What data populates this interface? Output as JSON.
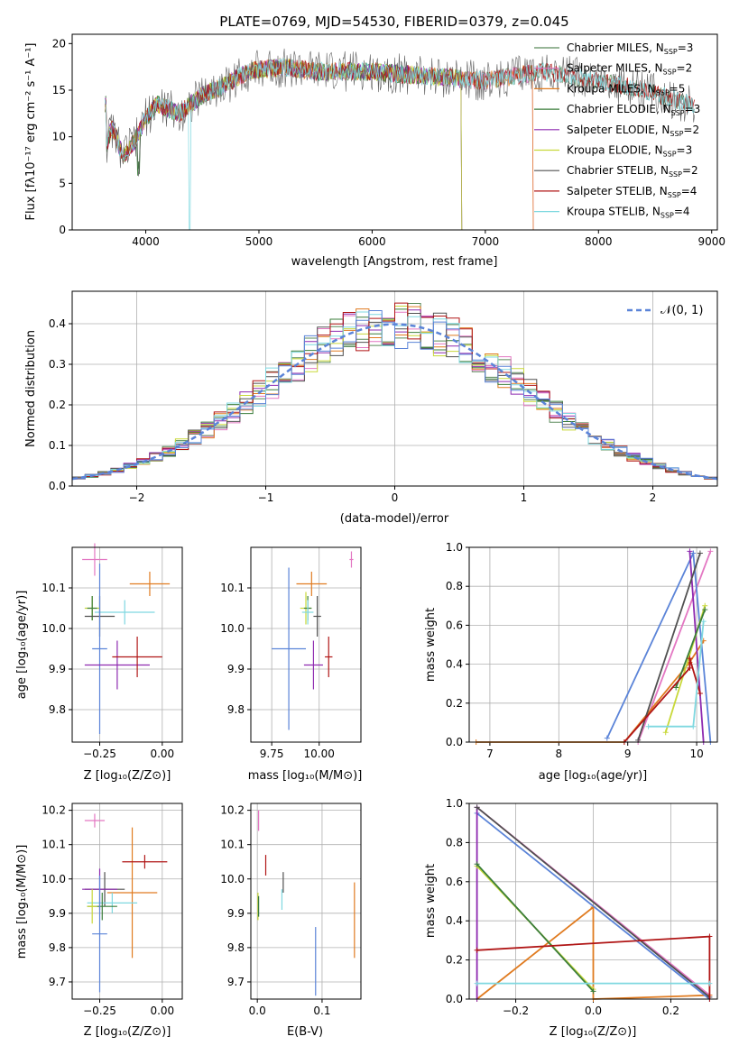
{
  "colors": {
    "Chabrier MILES": "#5a8a5a",
    "Salpeter MILES": "#e377c2",
    "Kroupa MILES": "#e07b20",
    "Chabrier ELODIE": "#3a7d3a",
    "Salpeter ELODIE": "#8e2ab0",
    "Kroupa ELODIE": "#c8d83a",
    "Chabrier STELIB": "#505050",
    "Salpeter STELIB": "#b01515",
    "Kroupa STELIB": "#7fd8e0",
    "Blue": "#5b84d8"
  },
  "chart_data": [
    {
      "id": "spectrum",
      "type": "line",
      "title": "PLATE=0769, MJD=54530, FIBERID=0379, z=0.045",
      "xlabel": "wavelength [Angstrom, rest frame]",
      "ylabel": "Flux [fλ10⁻¹⁷ erg cm⁻² s⁻¹ A⁻¹]",
      "xlim": [
        3350,
        9050
      ],
      "ylim": [
        0,
        21
      ],
      "xticks": [
        4000,
        5000,
        6000,
        7000,
        8000,
        9000
      ],
      "yticks": [
        0,
        5,
        10,
        15,
        20
      ],
      "legend_position": "top-right",
      "continuum": [
        [
          3650,
          9
        ],
        [
          3700,
          11
        ],
        [
          3800,
          8
        ],
        [
          3900,
          9.5
        ],
        [
          4000,
          12
        ],
        [
          4100,
          13.5
        ],
        [
          4200,
          13
        ],
        [
          4300,
          12.5
        ],
        [
          4500,
          14.5
        ],
        [
          4700,
          15.5
        ],
        [
          4900,
          17
        ],
        [
          5200,
          17.5
        ],
        [
          5500,
          17
        ],
        [
          6000,
          17
        ],
        [
          6500,
          16.5
        ],
        [
          7000,
          16
        ],
        [
          7500,
          17
        ],
        [
          8000,
          16
        ],
        [
          8400,
          15
        ],
        [
          8800,
          13.5
        ]
      ],
      "series": [
        {
          "name": "Chabrier MILES, Nₛₛₚ=3",
          "name_main": "Chabrier MILES, N",
          "name_sub": "SSP",
          "name_tail": "=3",
          "color_key": "Chabrier MILES",
          "end": 8850
        },
        {
          "name": "Salpeter MILES, Nₛₛₚ=2",
          "name_main": "Salpeter MILES, N",
          "name_sub": "SSP",
          "name_tail": "=2",
          "color_key": "Salpeter MILES",
          "end": 7430
        },
        {
          "name": "Kroupa MILES, Nₛₛₚ=5",
          "name_main": "Kroupa MILES, N",
          "name_sub": "SSP",
          "name_tail": "=5",
          "color_key": "Kroupa MILES",
          "end": 7430
        },
        {
          "name": "Chabrier ELODIE, Nₛₛₚ=3",
          "name_main": "Chabrier ELODIE, N",
          "name_sub": "SSP",
          "name_tail": "=3",
          "color_key": "Chabrier ELODIE",
          "end": 6800
        },
        {
          "name": "Salpeter ELODIE, Nₛₛₚ=2",
          "name_main": "Salpeter ELODIE, N",
          "name_sub": "SSP",
          "name_tail": "=2",
          "color_key": "Salpeter ELODIE",
          "end": 6800
        },
        {
          "name": "Kroupa ELODIE, Nₛₛₚ=3",
          "name_main": "Kroupa ELODIE, N",
          "name_sub": "SSP",
          "name_tail": "=3",
          "color_key": "Kroupa ELODIE",
          "end": 6800
        },
        {
          "name": "Chabrier STELIB, Nₛₛₚ=2",
          "name_main": "Chabrier STELIB, N",
          "name_sub": "SSP",
          "name_tail": "=2",
          "color_key": "Chabrier STELIB",
          "end": 8850
        },
        {
          "name": "Salpeter STELIB, Nₛₛₚ=4",
          "name_main": "Salpeter STELIB, N",
          "name_sub": "SSP",
          "name_tail": "=4",
          "color_key": "Salpeter STELIB",
          "end": 8850
        },
        {
          "name": "Kroupa STELIB, Nₛₛₚ=4",
          "name_main": "Kroupa STELIB, N",
          "name_sub": "SSP",
          "name_tail": "=4",
          "color_key": "Kroupa STELIB",
          "end": 8850
        }
      ]
    },
    {
      "id": "residuals",
      "type": "line",
      "xlabel": "(data-model)/error",
      "ylabel": "Normed distribution",
      "xlim": [
        -2.5,
        2.5
      ],
      "ylim": [
        0,
        0.48
      ],
      "xticks": [
        -2,
        -1,
        0,
        1,
        2
      ],
      "yticks": [
        0.0,
        0.1,
        0.2,
        0.3,
        0.4
      ],
      "grid": true,
      "legend": "𝒩(0, 1)",
      "legend_position": "top-right",
      "bin_width": 0.1,
      "series_colors": [
        "Chabrier MILES",
        "Salpeter MILES",
        "Kroupa MILES",
        "Chabrier ELODIE",
        "Salpeter ELODIE",
        "Kroupa ELODIE",
        "Chabrier STELIB",
        "Salpeter STELIB",
        "Kroupa STELIB",
        "Blue"
      ]
    },
    {
      "id": "age_vs_Z",
      "type": "scatter",
      "xlabel": "Z [log₁₀(Z/Z⊙)]",
      "ylabel": "age  [log₁₀(age/yr)]",
      "xlim": [
        -0.36,
        0.08
      ],
      "ylim": [
        9.72,
        10.2
      ],
      "xticks": [
        -0.25,
        0.0
      ],
      "yticks": [
        9.8,
        9.9,
        10.0,
        10.1
      ],
      "grid": true,
      "points": [
        {
          "x": -0.27,
          "y": 10.17,
          "xerr": 0.05,
          "yerr": 0.04,
          "color_key": "Salpeter MILES"
        },
        {
          "x": -0.05,
          "y": 10.11,
          "xerr": 0.08,
          "yerr": 0.03,
          "color_key": "Kroupa MILES"
        },
        {
          "x": -0.28,
          "y": 10.05,
          "xerr": 0.03,
          "yerr": 0.03,
          "color_key": "Kroupa ELODIE"
        },
        {
          "x": -0.28,
          "y": 10.05,
          "xerr": 0.02,
          "yerr": 0.03,
          "color_key": "Chabrier ELODIE"
        },
        {
          "x": -0.15,
          "y": 10.04,
          "xerr": 0.12,
          "yerr": 0.03,
          "color_key": "Kroupa STELIB"
        },
        {
          "x": -0.25,
          "y": 10.03,
          "xerr": 0.06,
          "yerr": 0.05,
          "color_key": "Chabrier STELIB"
        },
        {
          "x": -0.25,
          "y": 9.95,
          "xerr": 0.03,
          "yerr": 0.21,
          "color_key": "Blue"
        },
        {
          "x": -0.18,
          "y": 9.91,
          "xerr": 0.13,
          "yerr": 0.06,
          "color_key": "Salpeter ELODIE"
        },
        {
          "x": -0.1,
          "y": 9.93,
          "xerr": 0.1,
          "yerr": 0.05,
          "color_key": "Salpeter STELIB"
        }
      ]
    },
    {
      "id": "age_vs_mass",
      "type": "scatter",
      "xlabel": "mass [log₁₀(M/M⊙)]",
      "xlim": [
        9.64,
        10.22
      ],
      "ylim": [
        9.72,
        10.2
      ],
      "xticks": [
        9.75,
        10.0
      ],
      "yticks": [
        9.8,
        9.9,
        10.0,
        10.1
      ],
      "grid": true,
      "points": [
        {
          "x": 10.17,
          "y": 10.17,
          "xerr": 0.01,
          "yerr": 0.02,
          "color_key": "Salpeter MILES"
        },
        {
          "x": 9.96,
          "y": 10.11,
          "xerr": 0.08,
          "yerr": 0.03,
          "color_key": "Kroupa MILES"
        },
        {
          "x": 9.93,
          "y": 10.05,
          "xerr": 0.03,
          "yerr": 0.04,
          "color_key": "Kroupa ELODIE"
        },
        {
          "x": 9.94,
          "y": 10.05,
          "xerr": 0.02,
          "yerr": 0.03,
          "color_key": "Chabrier ELODIE"
        },
        {
          "x": 9.94,
          "y": 10.04,
          "xerr": 0.03,
          "yerr": 0.03,
          "color_key": "Kroupa STELIB"
        },
        {
          "x": 9.99,
          "y": 10.03,
          "xerr": 0.02,
          "yerr": 0.05,
          "color_key": "Chabrier STELIB"
        },
        {
          "x": 9.84,
          "y": 9.95,
          "xerr": 0.09,
          "yerr": 0.2,
          "color_key": "Blue"
        },
        {
          "x": 9.97,
          "y": 9.91,
          "xerr": 0.05,
          "yerr": 0.06,
          "color_key": "Salpeter ELODIE"
        },
        {
          "x": 10.05,
          "y": 9.93,
          "xerr": 0.02,
          "yerr": 0.05,
          "color_key": "Salpeter STELIB"
        }
      ]
    },
    {
      "id": "mass_weight_vs_age",
      "type": "line",
      "xlabel": "age  [log₁₀(age/yr)]",
      "ylabel": "mass weight",
      "xlim": [
        6.7,
        10.3
      ],
      "ylim": [
        0,
        1.0
      ],
      "xticks": [
        7,
        8,
        9,
        10
      ],
      "yticks": [
        0.0,
        0.2,
        0.4,
        0.6,
        0.8,
        1.0
      ],
      "grid": true,
      "series": [
        {
          "color_key": "Salpeter MILES",
          "points": [
            [
              9.15,
              0.0
            ],
            [
              10.2,
              0.98
            ]
          ]
        },
        {
          "color_key": "Kroupa MILES",
          "points": [
            [
              6.8,
              0.0
            ],
            [
              8.95,
              0.0
            ],
            [
              9.9,
              0.41
            ],
            [
              10.1,
              0.52
            ]
          ]
        },
        {
          "color_key": "Blue",
          "points": [
            [
              8.7,
              0.02
            ],
            [
              9.95,
              0.97
            ],
            [
              10.2,
              0.0
            ]
          ]
        },
        {
          "color_key": "Salpeter ELODIE",
          "points": [
            [
              9.9,
              0.98
            ],
            [
              10.1,
              0.0
            ]
          ]
        },
        {
          "color_key": "Kroupa ELODIE",
          "points": [
            [
              9.55,
              0.05
            ],
            [
              10.12,
              0.7
            ]
          ]
        },
        {
          "color_key": "Chabrier ELODIE",
          "points": [
            [
              9.7,
              0.28
            ],
            [
              10.12,
              0.68
            ]
          ]
        },
        {
          "color_key": "Chabrier STELIB",
          "points": [
            [
              9.15,
              0.01
            ],
            [
              10.05,
              0.97
            ]
          ]
        },
        {
          "color_key": "Salpeter STELIB",
          "points": [
            [
              8.95,
              0.0
            ],
            [
              9.9,
              0.38
            ],
            [
              9.9,
              0.43
            ],
            [
              10.05,
              0.25
            ]
          ]
        },
        {
          "color_key": "Kroupa STELIB",
          "points": [
            [
              9.3,
              0.08
            ],
            [
              9.95,
              0.08
            ],
            [
              10.1,
              0.62
            ]
          ]
        }
      ]
    },
    {
      "id": "mass_vs_Z",
      "type": "scatter",
      "xlabel": "Z [log₁₀(Z/Z⊙)]",
      "ylabel": "mass [log₁₀(M/M⊙)]",
      "xlim": [
        -0.36,
        0.08
      ],
      "ylim": [
        9.65,
        10.22
      ],
      "xticks": [
        -0.25,
        0.0
      ],
      "yticks": [
        9.7,
        9.8,
        9.9,
        10.0,
        10.1,
        10.2
      ],
      "grid": true,
      "points": [
        {
          "x": -0.27,
          "y": 10.17,
          "xerr": 0.04,
          "yerr": 0.02,
          "color_key": "Salpeter MILES"
        },
        {
          "x": -0.12,
          "y": 9.96,
          "xerr": 0.1,
          "yerr": 0.19,
          "color_key": "Kroupa MILES"
        },
        {
          "x": -0.23,
          "y": 9.97,
          "xerr": 0.08,
          "yerr": 0.05,
          "color_key": "Chabrier STELIB"
        },
        {
          "x": -0.2,
          "y": 9.93,
          "xerr": 0.1,
          "yerr": 0.03,
          "color_key": "Kroupa STELIB"
        },
        {
          "x": -0.25,
          "y": 9.97,
          "xerr": 0.07,
          "yerr": 0.06,
          "color_key": "Salpeter ELODIE"
        },
        {
          "x": -0.24,
          "y": 9.92,
          "xerr": 0.06,
          "yerr": 0.04,
          "color_key": "Chabrier ELODIE"
        },
        {
          "x": -0.28,
          "y": 9.92,
          "xerr": 0.02,
          "yerr": 0.05,
          "color_key": "Kroupa ELODIE"
        },
        {
          "x": -0.25,
          "y": 9.84,
          "xerr": 0.03,
          "yerr": 0.17,
          "color_key": "Blue"
        },
        {
          "x": -0.07,
          "y": 10.05,
          "xerr": 0.09,
          "yerr": 0.02,
          "color_key": "Salpeter STELIB"
        }
      ]
    },
    {
      "id": "mass_vs_EBV",
      "type": "scatter",
      "xlabel": "E(B-V)",
      "xlim": [
        -0.01,
        0.16
      ],
      "ylim": [
        9.65,
        10.22
      ],
      "xticks": [
        0.0,
        0.1
      ],
      "yticks": [
        9.7,
        9.8,
        9.9,
        10.0,
        10.1,
        10.2
      ],
      "grid": true,
      "points": [
        {
          "x": 0.002,
          "y": 10.17,
          "xerr": 0.0,
          "yerr": 0.03,
          "color_key": "Salpeter MILES"
        },
        {
          "x": 0.013,
          "y": 10.04,
          "xerr": 0.0,
          "yerr": 0.03,
          "color_key": "Salpeter STELIB"
        },
        {
          "x": 0.04,
          "y": 9.99,
          "xerr": 0.0,
          "yerr": 0.03,
          "color_key": "Chabrier STELIB"
        },
        {
          "x": 0.038,
          "y": 9.94,
          "xerr": 0.0,
          "yerr": 0.03,
          "color_key": "Kroupa STELIB"
        },
        {
          "x": 0.001,
          "y": 9.92,
          "xerr": 0.0,
          "yerr": 0.04,
          "color_key": "Kroupa ELODIE"
        },
        {
          "x": 0.002,
          "y": 9.92,
          "xerr": 0.0,
          "yerr": 0.03,
          "color_key": "Chabrier ELODIE"
        },
        {
          "x": 0.15,
          "y": 9.88,
          "xerr": 0.0,
          "yerr": 0.11,
          "color_key": "Kroupa MILES"
        },
        {
          "x": 0.09,
          "y": 9.76,
          "xerr": 0.0,
          "yerr": 0.1,
          "color_key": "Blue"
        }
      ]
    },
    {
      "id": "mass_weight_vs_Z",
      "type": "line",
      "xlabel": "Z [log₁₀(Z/Z⊙)]",
      "ylabel": "mass weight",
      "xlim": [
        -0.32,
        0.32
      ],
      "ylim": [
        0,
        1.0
      ],
      "xticks": [
        -0.2,
        0.0,
        0.2
      ],
      "yticks": [
        0.0,
        0.2,
        0.4,
        0.6,
        0.8,
        1.0
      ],
      "grid": true,
      "series": [
        {
          "color_key": "Salpeter MILES",
          "points": [
            [
              -0.3,
              0.98
            ],
            [
              0.3,
              0.02
            ]
          ]
        },
        {
          "color_key": "Kroupa MILES",
          "points": [
            [
              -0.3,
              0.0
            ],
            [
              0.0,
              0.47
            ],
            [
              0.0,
              0.0
            ],
            [
              0.3,
              0.02
            ]
          ]
        },
        {
          "color_key": "Blue",
          "points": [
            [
              -0.3,
              0.95
            ],
            [
              0.3,
              0.0
            ]
          ]
        },
        {
          "color_key": "Salpeter ELODIE",
          "points": [
            [
              -0.3,
              0.98
            ],
            [
              -0.3,
              0.0
            ]
          ]
        },
        {
          "color_key": "Kroupa ELODIE",
          "points": [
            [
              -0.3,
              0.68
            ],
            [
              0.0,
              0.05
            ]
          ]
        },
        {
          "color_key": "Chabrier ELODIE",
          "points": [
            [
              -0.3,
              0.69
            ],
            [
              0.0,
              0.04
            ]
          ]
        },
        {
          "color_key": "Chabrier STELIB",
          "points": [
            [
              -0.3,
              0.98
            ],
            [
              0.3,
              0.01
            ]
          ]
        },
        {
          "color_key": "Salpeter STELIB",
          "points": [
            [
              -0.3,
              0.25
            ],
            [
              0.3,
              0.32
            ],
            [
              0.3,
              0.0
            ]
          ]
        },
        {
          "color_key": "Kroupa STELIB",
          "points": [
            [
              -0.3,
              0.08
            ],
            [
              0.3,
              0.08
            ]
          ]
        }
      ]
    }
  ]
}
